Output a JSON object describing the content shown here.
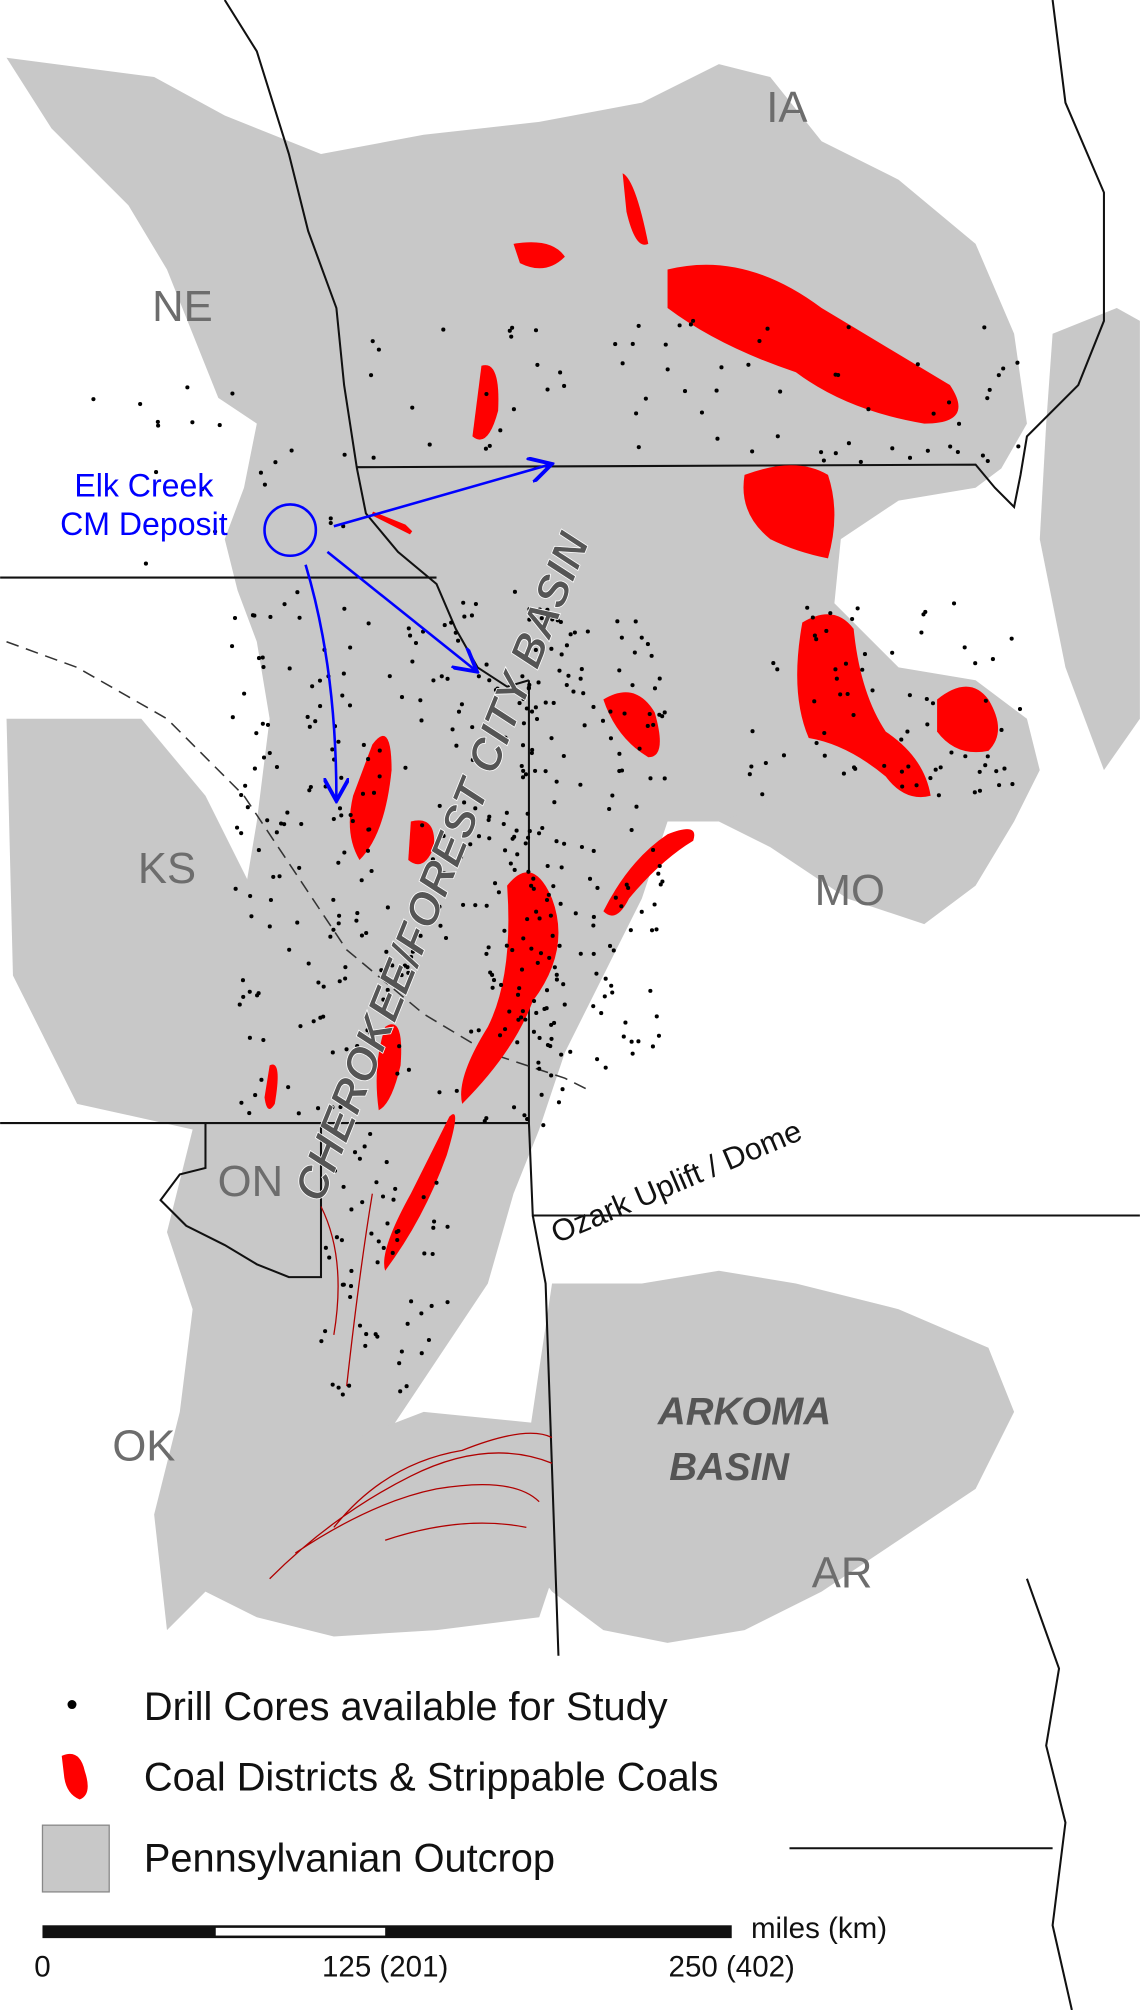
{
  "map": {
    "states": [
      {
        "label": "NE"
      },
      {
        "label": "IA"
      },
      {
        "label": "KS"
      },
      {
        "label": "MO"
      },
      {
        "label": "ON"
      },
      {
        "label": "OK"
      },
      {
        "label": "AR"
      }
    ],
    "callout": {
      "lines": [
        "Elk Creek",
        "CM Deposit"
      ]
    },
    "basins": {
      "cherokee": "CHEROKEE/FOREST CITY BASIN",
      "arkoma": [
        "ARKOMA",
        "BASIN"
      ]
    },
    "uplift": "Ozark Uplift / Dome"
  },
  "legend": [
    {
      "label": "Drill Cores available for Study"
    },
    {
      "label": "Coal Districts & Strippable Coals"
    },
    {
      "label": "Pennsylvanian Outcrop"
    }
  ],
  "scale": {
    "unit": "miles (km)",
    "ticks": [
      "0",
      "125 (201)",
      "250 (402)"
    ]
  }
}
